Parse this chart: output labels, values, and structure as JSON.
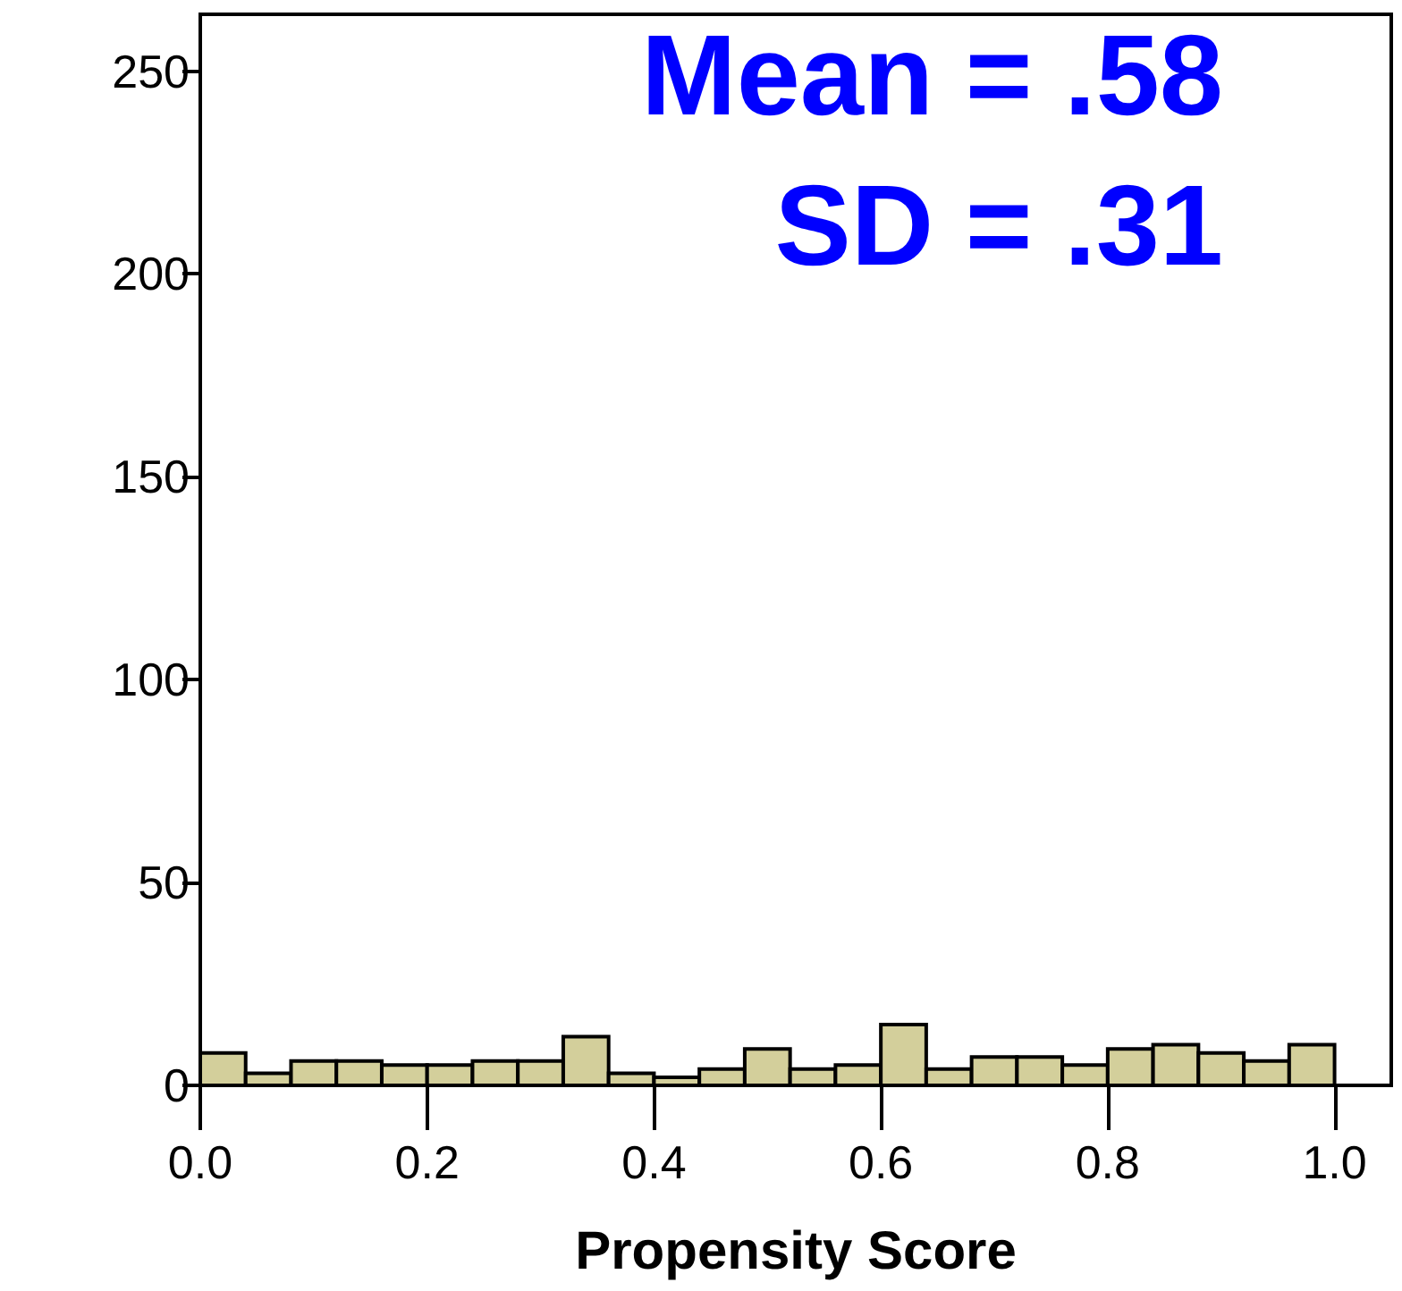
{
  "chart_data": {
    "type": "histogram",
    "xlabel": "Propensity Score",
    "bins": [
      0,
      0.04,
      0.08,
      0.12,
      0.16,
      0.2,
      0.24,
      0.28,
      0.32,
      0.36,
      0.4,
      0.44,
      0.48,
      0.52,
      0.56,
      0.6,
      0.64,
      0.68,
      0.72,
      0.76,
      0.8,
      0.84,
      0.88,
      0.92,
      0.96,
      1.0
    ],
    "values": [
      8,
      3,
      6,
      6,
      5,
      5,
      6,
      6,
      12,
      3,
      2,
      4,
      9,
      4,
      5,
      15,
      4,
      7,
      7,
      5,
      9,
      10,
      8,
      6,
      10
    ],
    "color": "#d3cf9b",
    "xlim": [
      0,
      1.05
    ],
    "xticks": [
      {
        "value": 0,
        "label": "0.0"
      },
      {
        "value": 0.2,
        "label": "0.2"
      },
      {
        "value": 0.4,
        "label": "0.4"
      },
      {
        "value": 0.6,
        "label": "0.6"
      },
      {
        "value": 0.8,
        "label": "0.8"
      },
      {
        "value": 1.0,
        "label": "1.0"
      }
    ],
    "ylim": [
      0,
      264
    ],
    "yticks": [
      0,
      50,
      100,
      150,
      200,
      250
    ],
    "grid": false,
    "annotations": [
      "Mean = .58",
      "SD = .31"
    ]
  }
}
